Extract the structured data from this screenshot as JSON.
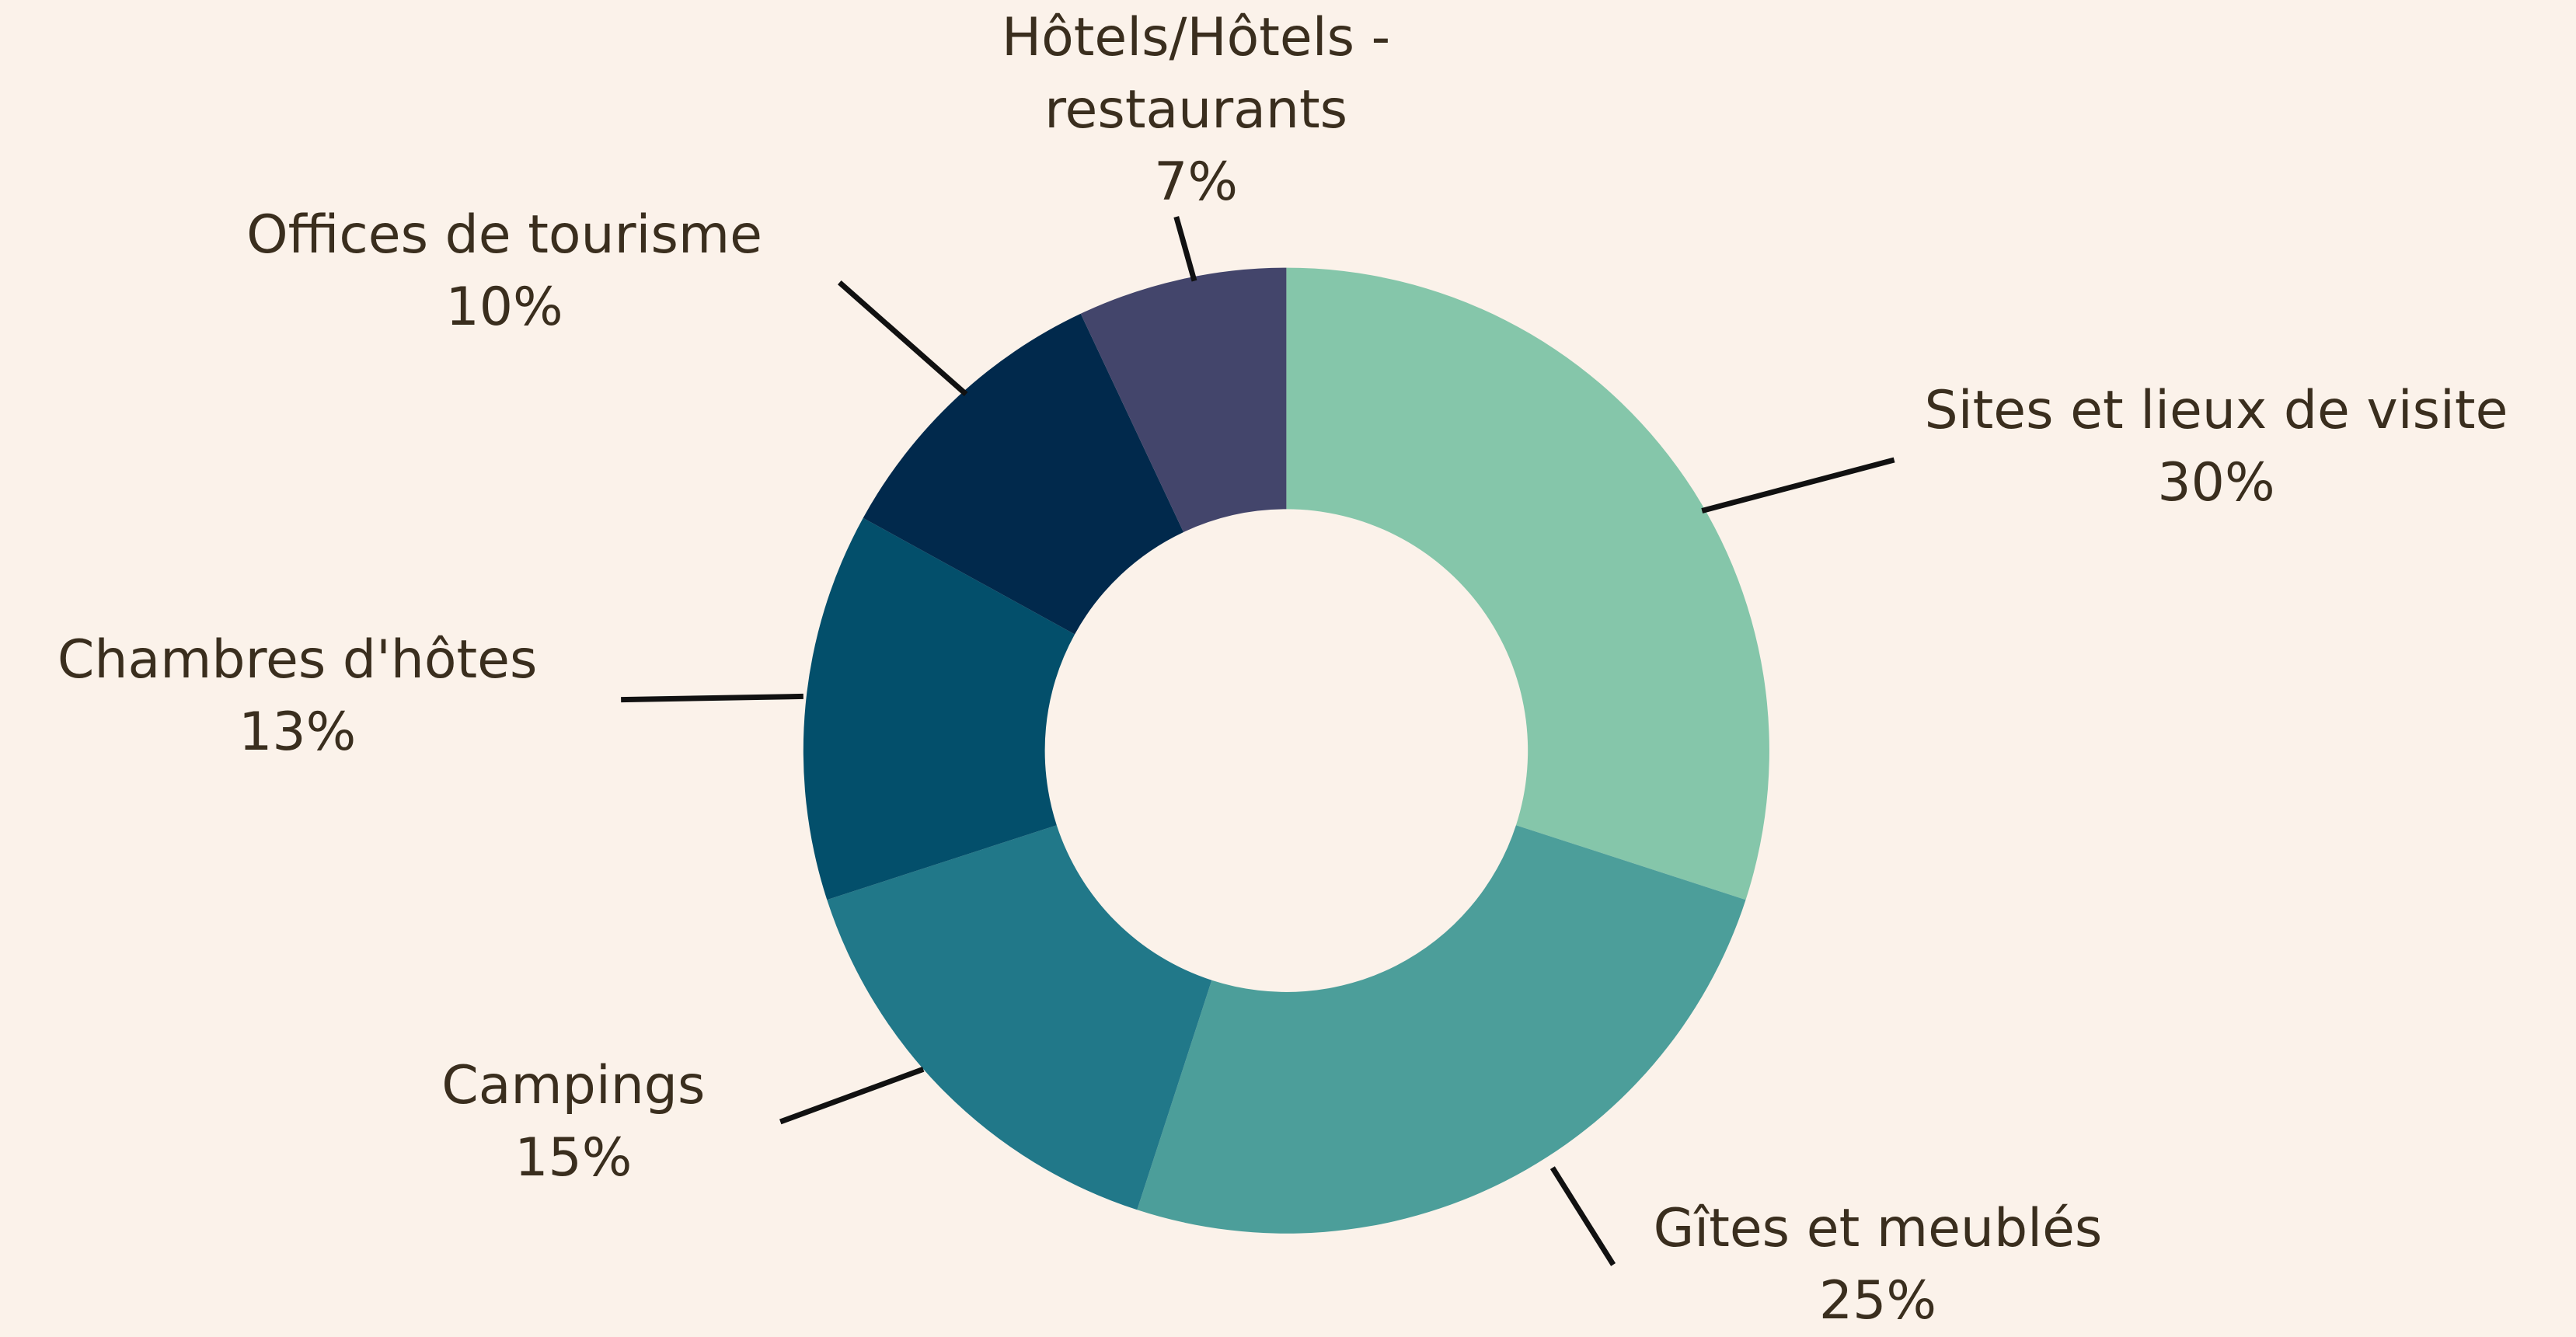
{
  "chart_data": {
    "type": "donut",
    "categories": [
      "Sites et lieux de visite",
      "Gîtes et meublés",
      "Campings",
      "Chambres d'hôtes",
      "Offices de tourisme",
      "Hôtels/Hôtels - restaurants"
    ],
    "values": [
      30,
      25,
      15,
      13,
      10,
      7
    ],
    "value_labels": [
      "30%",
      "25%",
      "15%",
      "13%",
      "10%",
      "7%"
    ],
    "colors": [
      "#85c6aa",
      "#4c9e9a",
      "#217889",
      "#034f6b",
      "#01294c",
      "#43456b"
    ]
  }
}
